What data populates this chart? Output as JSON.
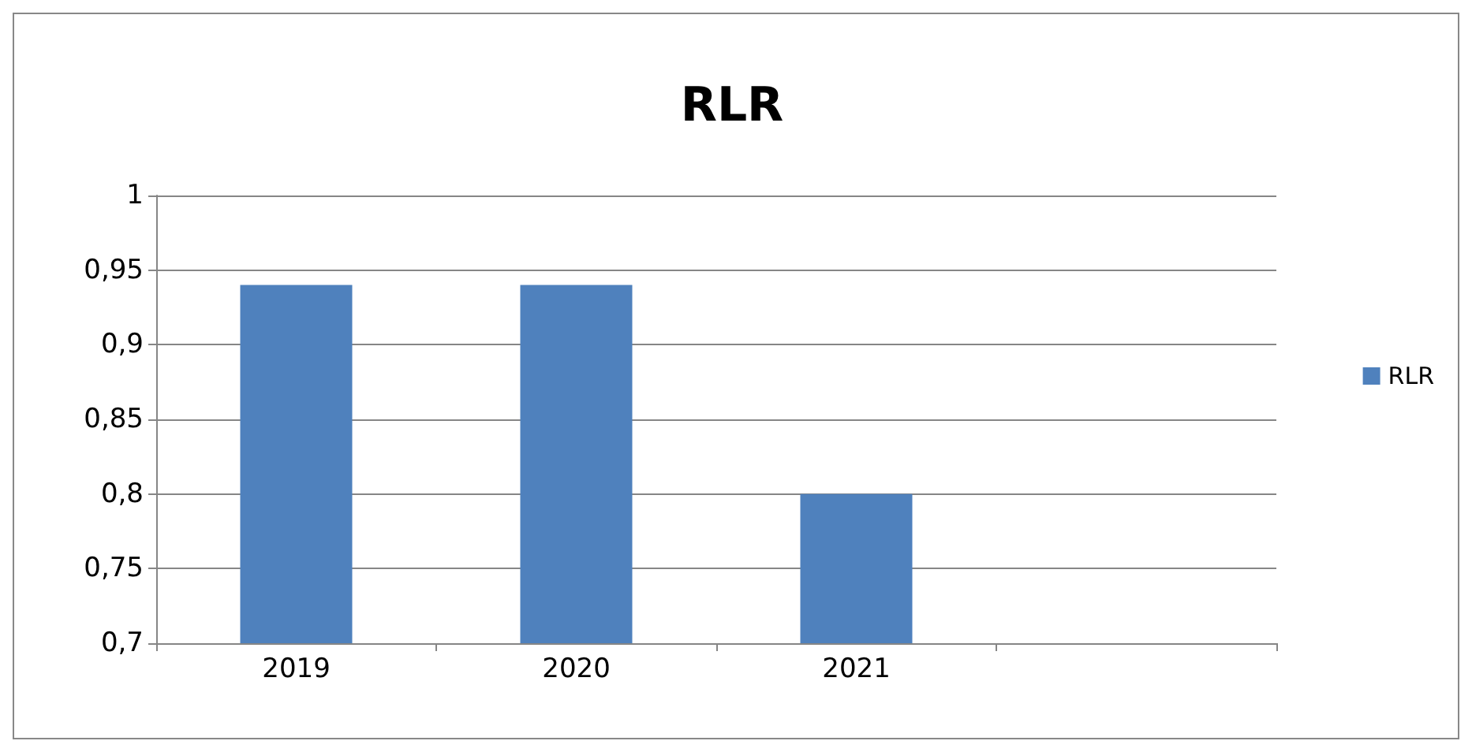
{
  "chart_data": {
    "type": "bar",
    "title": "RLR",
    "categories": [
      "2019",
      "2020",
      "2021",
      null
    ],
    "series": [
      {
        "name": "RLR",
        "color": "#4f81bd",
        "values": [
          0.94,
          0.94,
          0.8,
          null
        ]
      }
    ],
    "ylim": [
      0.7,
      1
    ],
    "yticks": [
      {
        "value": 0.7,
        "label": "0,7"
      },
      {
        "value": 0.75,
        "label": "0,75"
      },
      {
        "value": 0.8,
        "label": "0,8"
      },
      {
        "value": 0.85,
        "label": "0,85"
      },
      {
        "value": 0.9,
        "label": "0,9"
      },
      {
        "value": 0.95,
        "label": "0,95"
      },
      1
    ],
    "grid": "y",
    "legend": "right"
  }
}
